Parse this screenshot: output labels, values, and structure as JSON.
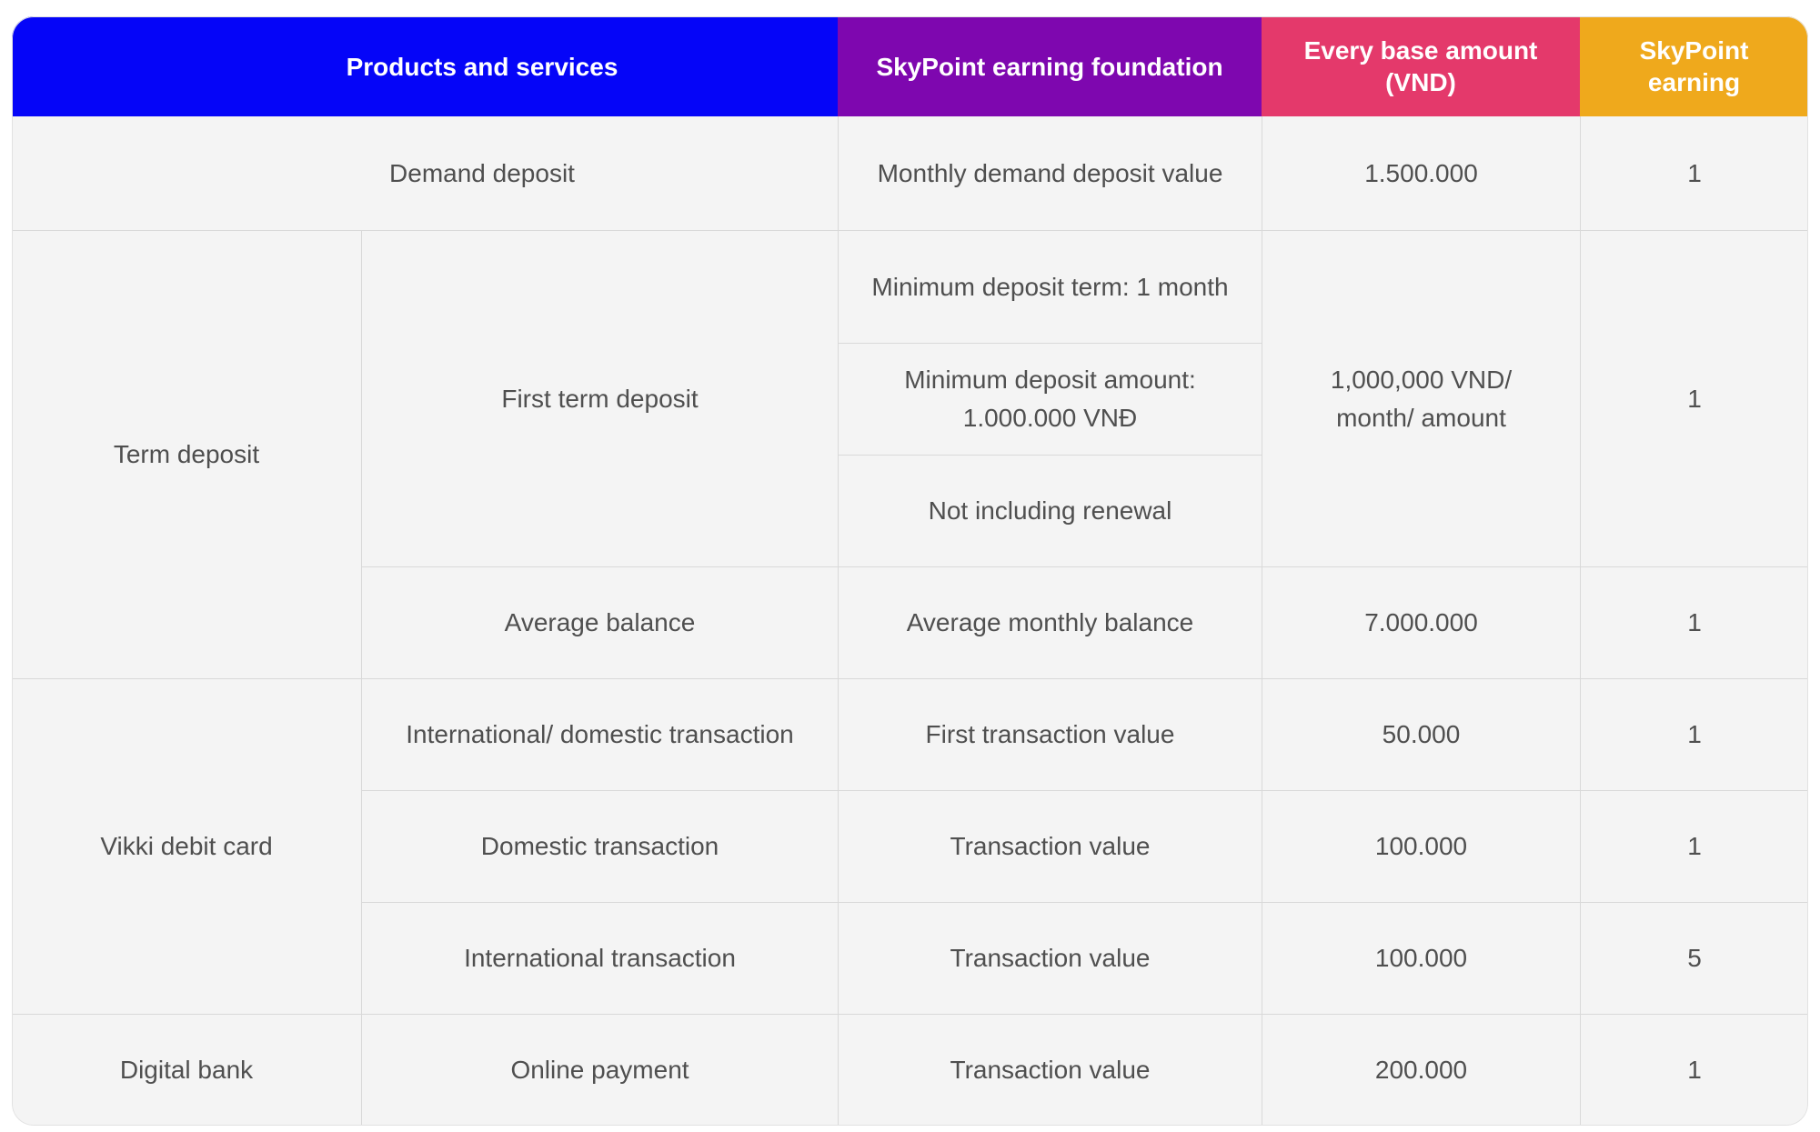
{
  "header": {
    "products_label": "Products and services",
    "foundation_label": "SkyPoint earning foundation",
    "base_amount_label": "Every base amount\n(VND)",
    "earning_label": "SkyPoint\nearning"
  },
  "colors": {
    "products_header": "#0505f8",
    "foundation_header": "#7e07af",
    "base_amount_header": "#e4396b",
    "earning_header": "#efa91c",
    "body_background": "#f4f4f4",
    "grid_line": "#d9d9d9",
    "body_text": "#4f4f4f"
  },
  "rows": {
    "demand_deposit": {
      "product": "Demand deposit",
      "foundation": "Monthly demand deposit value",
      "base_amount": "1.500.000",
      "earning": "1"
    },
    "term_deposit": {
      "group": "Term deposit",
      "first_term_deposit": {
        "product": "First term deposit",
        "foundation_items": {
          "min_term": "Minimum deposit term: 1 month",
          "min_amount": "Minimum deposit amount:\n1.000.000 VNĐ",
          "renewal": "Not including renewal"
        },
        "base_amount": "1,000,000 VND/\nmonth/ amount",
        "earning": "1"
      },
      "average_balance": {
        "product": "Average balance",
        "foundation": "Average monthly balance",
        "base_amount": "7.000.000",
        "earning": "1"
      }
    },
    "vikki_debit_card": {
      "group": "Vikki debit card",
      "international_domestic": {
        "product": "International/ domestic transaction",
        "foundation": "First transaction value",
        "base_amount": "50.000",
        "earning": "1"
      },
      "domestic": {
        "product": "Domestic transaction",
        "foundation": "Transaction value",
        "base_amount": "100.000",
        "earning": "1"
      },
      "international": {
        "product": "International transaction",
        "foundation": "Transaction value",
        "base_amount": "100.000",
        "earning": "5"
      }
    },
    "digital_bank": {
      "group": "Digital bank",
      "online_payment": {
        "product": "Online payment",
        "foundation": "Transaction value",
        "base_amount": "200.000",
        "earning": "1"
      }
    }
  }
}
